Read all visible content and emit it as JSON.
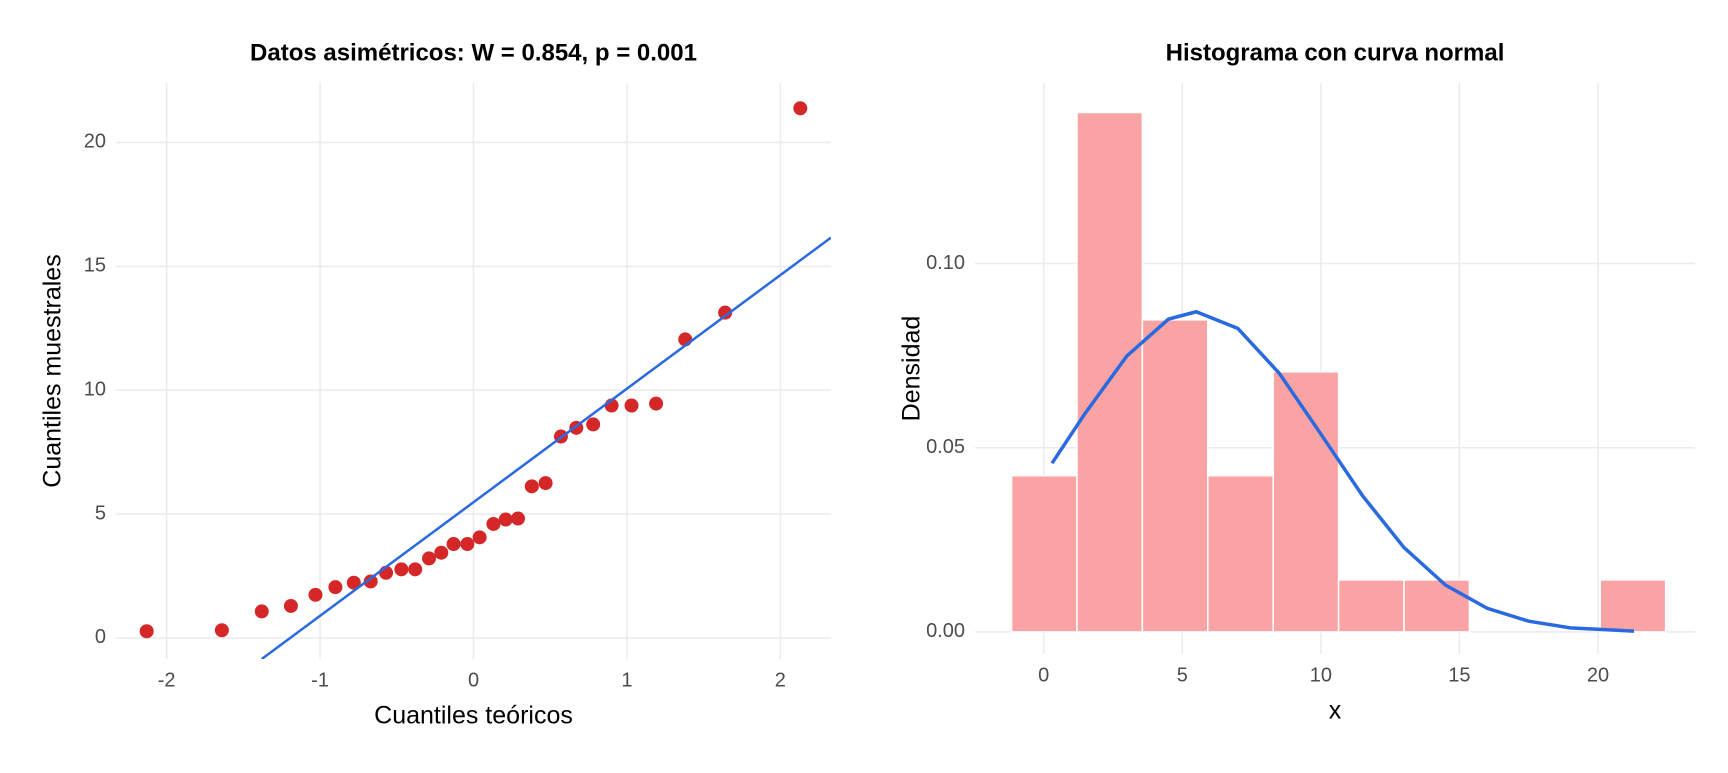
{
  "chart_data": [
    {
      "type": "scatter",
      "title": "Datos asimétricos: W = 0.854, p = 0.001",
      "x_label": "Cuantiles teóricos",
      "y_label": "Cuantiles muestrales",
      "x": [
        -2.13,
        -1.64,
        -1.38,
        -1.19,
        -1.03,
        -0.9,
        -0.78,
        -0.67,
        -0.57,
        -0.47,
        -0.38,
        -0.29,
        -0.21,
        -0.13,
        -0.04,
        0.04,
        0.13,
        0.21,
        0.29,
        0.38,
        0.47,
        0.57,
        0.67,
        0.78,
        0.9,
        1.03,
        1.19,
        1.38,
        1.64,
        2.13
      ],
      "values": [
        0.27,
        0.31,
        1.07,
        1.29,
        1.74,
        2.05,
        2.23,
        2.28,
        2.63,
        2.77,
        2.77,
        3.21,
        3.44,
        3.79,
        3.79,
        4.06,
        4.6,
        4.78,
        4.82,
        6.12,
        6.25,
        8.13,
        8.48,
        8.62,
        9.38,
        9.38,
        9.46,
        12.05,
        13.13,
        21.38
      ],
      "color": "#d62728",
      "line_color": "#2a6ae0",
      "reference_line": {
        "x": [
          -1.38,
          2.33
        ],
        "y": [
          -0.85,
          16.16
        ]
      },
      "xlim": [
        -2.33,
        2.33
      ],
      "ylim": [
        -0.85,
        22.4
      ],
      "xticks": [
        -2,
        -1,
        0,
        1,
        2
      ],
      "yticks": [
        0,
        5,
        10,
        15,
        20
      ],
      "grid": true
    },
    {
      "type": "histogram",
      "title": "Histograma con curva normal",
      "x_label": "x",
      "y_label": "Densidad",
      "bins": [
        -1.16,
        1.2,
        3.56,
        5.92,
        8.28,
        10.64,
        13.0,
        15.36,
        17.72,
        20.08,
        22.44
      ],
      "values": [
        0.0424,
        0.141,
        0.0847,
        0.0424,
        0.0706,
        0.0141,
        0.0141,
        0,
        0,
        0.0141
      ],
      "color": "#f9a3a4",
      "line_color": "#2a6ae0",
      "curve": {
        "x": [
          0.3,
          1.5,
          3,
          4.5,
          5.5,
          7,
          8.5,
          10,
          11.5,
          13,
          14.5,
          16,
          17.5,
          19,
          21.3
        ],
        "y": [
          0.0458,
          0.0594,
          0.0749,
          0.0849,
          0.0869,
          0.0824,
          0.0702,
          0.0537,
          0.037,
          0.0229,
          0.0127,
          0.0064,
          0.0029,
          0.0011,
          0.0002
        ]
      },
      "xlim": [
        -2.48,
        23.5
      ],
      "ylim": [
        -0.006,
        0.149
      ],
      "xticks": [
        0,
        5,
        10,
        15,
        20
      ],
      "yticks": [
        {
          "value": 0,
          "label": "0.00"
        },
        {
          "value": 0.05,
          "label": "0.05"
        },
        {
          "value": 0.1,
          "label": "0.10"
        }
      ],
      "grid": true
    }
  ]
}
